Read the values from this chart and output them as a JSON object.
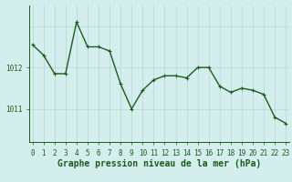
{
  "x": [
    0,
    1,
    2,
    3,
    4,
    5,
    6,
    7,
    8,
    9,
    10,
    11,
    12,
    13,
    14,
    15,
    16,
    17,
    18,
    19,
    20,
    21,
    22,
    23
  ],
  "y": [
    1012.55,
    1012.3,
    1011.85,
    1011.85,
    1013.1,
    1012.5,
    1012.5,
    1012.4,
    1011.6,
    1011.0,
    1011.45,
    1011.7,
    1011.8,
    1011.8,
    1011.75,
    1012.0,
    1012.0,
    1011.55,
    1011.4,
    1011.5,
    1011.45,
    1011.35,
    1010.8,
    1010.65
  ],
  "line_color": "#1a5c1a",
  "marker": "+",
  "marker_size": 3,
  "bg_color": "#d4eeee",
  "grid_color": "#b8d4d4",
  "axis_color": "#1a5c1a",
  "xlabel": "Graphe pression niveau de la mer (hPa)",
  "xlabel_fontsize": 7,
  "yticks": [
    1011,
    1012
  ],
  "xtick_labels": [
    "0",
    "1",
    "2",
    "3",
    "4",
    "5",
    "6",
    "7",
    "8",
    "9",
    "10",
    "11",
    "12",
    "13",
    "14",
    "15",
    "16",
    "17",
    "18",
    "19",
    "20",
    "21",
    "22",
    "23"
  ],
  "ylim": [
    1010.2,
    1013.5
  ],
  "xlim": [
    -0.3,
    23.3
  ],
  "linewidth": 1.0,
  "tick_fontsize": 5.5
}
